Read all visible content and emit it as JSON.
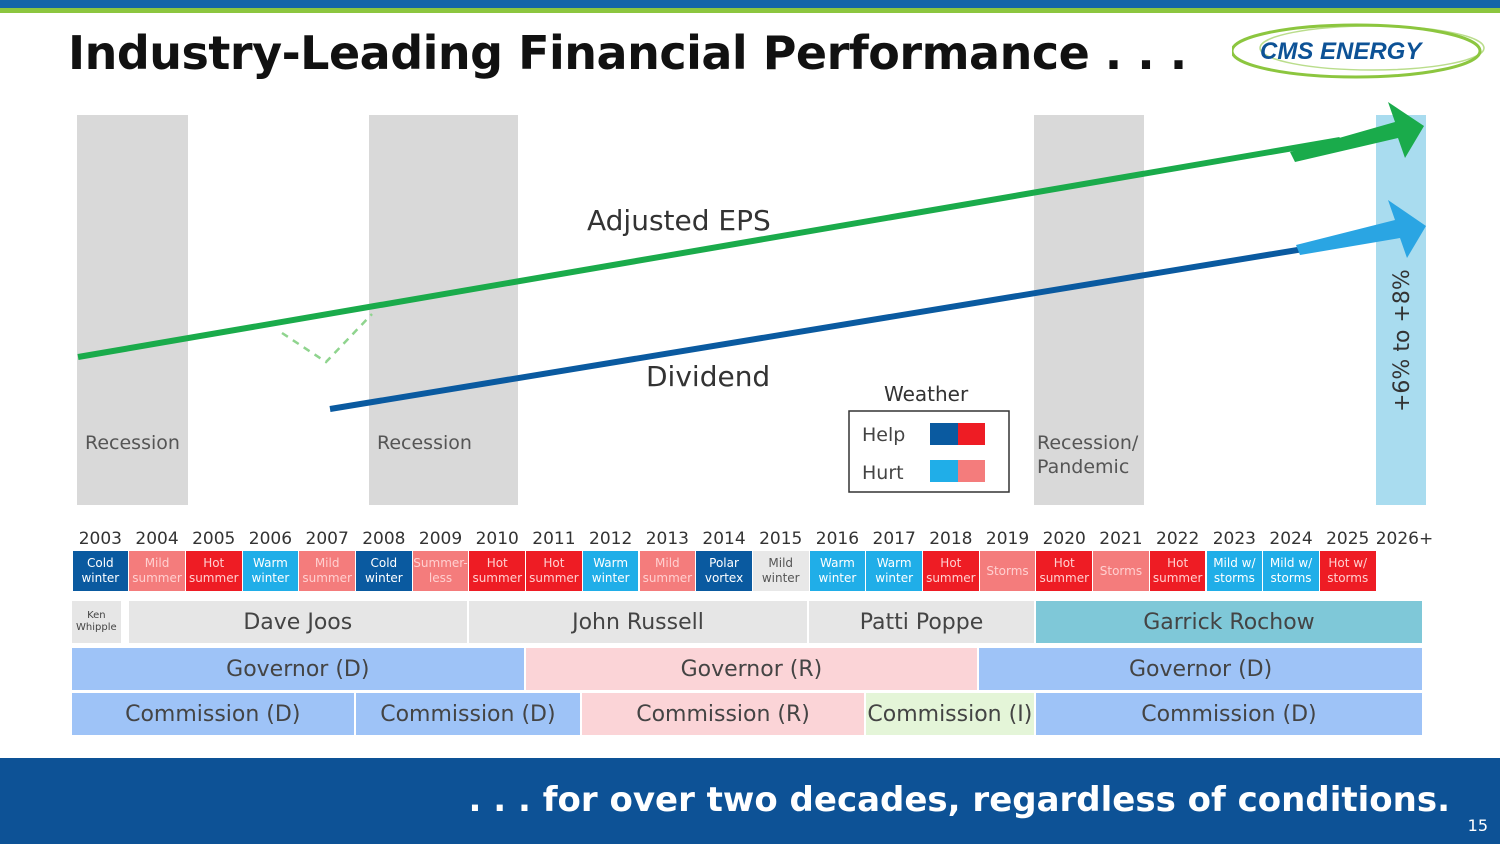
{
  "header": {
    "title": "Industry-Leading Financial Performance . . .",
    "logo_text": "CMS ENERGY"
  },
  "footer": {
    "tagline": ". . . for over two decades, regardless of conditions.",
    "page_number": "15"
  },
  "colors": {
    "eps_line": "#1aab4b",
    "dividend_line": "#0a5aa0",
    "arrow_light": "#2aa5e3",
    "help_blue": "#0a5aa0",
    "help_red": "#ee1c24",
    "hurt_blue": "#20aee8",
    "hurt_red": "#f47c7c",
    "democrat": "#9ec3f7",
    "republican": "#fbd4d7",
    "independent": "#e4f5d8",
    "rochow": "#7fc8d8",
    "neutral": "#e5e5e5"
  },
  "chart_data": {
    "type": "line",
    "x": [
      "2003",
      "2004",
      "2005",
      "2006",
      "2007",
      "2008",
      "2009",
      "2010",
      "2011",
      "2012",
      "2013",
      "2014",
      "2015",
      "2016",
      "2017",
      "2018",
      "2019",
      "2020",
      "2021",
      "2022",
      "2023",
      "2024",
      "2025",
      "2026+"
    ],
    "series": [
      {
        "name": "Adjusted EPS",
        "start": "2003",
        "end": "2026+"
      },
      {
        "name": "Dividend",
        "start": "2007",
        "end": "2026+"
      }
    ],
    "growth_label": "+6% to +8%",
    "shaded_periods": [
      {
        "label": "Recession",
        "from": "2003",
        "to": "2004"
      },
      {
        "label": "Recession",
        "from": "2008",
        "to": "2010"
      },
      {
        "label": "Recession/ Pandemic",
        "from": "2020",
        "to": "2021"
      }
    ],
    "legend": {
      "title": "Weather",
      "entries": [
        {
          "label": "Help"
        },
        {
          "label": "Hurt"
        }
      ]
    },
    "weather": [
      {
        "year": "2003",
        "text": "Cold winter",
        "effect": "help",
        "color": "#0a5aa0"
      },
      {
        "year": "2004",
        "text": "Mild summer",
        "effect": "hurt",
        "color": "#f47c7c"
      },
      {
        "year": "2005",
        "text": "Hot summer",
        "effect": "help",
        "color": "#ee1c24"
      },
      {
        "year": "2006",
        "text": "Warm winter",
        "effect": "hurt",
        "color": "#20aee8"
      },
      {
        "year": "2007",
        "text": "Mild summer",
        "effect": "hurt",
        "color": "#f47c7c"
      },
      {
        "year": "2008",
        "text": "Cold winter",
        "effect": "help",
        "color": "#0a5aa0"
      },
      {
        "year": "2009",
        "text": "Summer-less",
        "effect": "hurt",
        "color": "#f47c7c"
      },
      {
        "year": "2010",
        "text": "Hot summer",
        "effect": "help",
        "color": "#ee1c24"
      },
      {
        "year": "2011",
        "text": "Hot summer",
        "effect": "help",
        "color": "#ee1c24"
      },
      {
        "year": "2012",
        "text": "Warm winter",
        "effect": "hurt",
        "color": "#20aee8"
      },
      {
        "year": "2013",
        "text": "Mild summer",
        "effect": "hurt",
        "color": "#f47c7c"
      },
      {
        "year": "2014",
        "text": "Polar vortex",
        "effect": "help",
        "color": "#0a5aa0"
      },
      {
        "year": "2015",
        "text": "Mild winter",
        "effect": "neutral",
        "color": "#e8e8e8"
      },
      {
        "year": "2016",
        "text": "Warm winter",
        "effect": "hurt",
        "color": "#20aee8"
      },
      {
        "year": "2017",
        "text": "Warm winter",
        "effect": "hurt",
        "color": "#20aee8"
      },
      {
        "year": "2018",
        "text": "Hot summer",
        "effect": "help",
        "color": "#ee1c24"
      },
      {
        "year": "2019",
        "text": "Storms",
        "effect": "hurt",
        "color": "#f47c7c"
      },
      {
        "year": "2020",
        "text": "Hot summer",
        "effect": "help",
        "color": "#ee1c24"
      },
      {
        "year": "2021",
        "text": "Storms",
        "effect": "hurt",
        "color": "#f47c7c"
      },
      {
        "year": "2022",
        "text": "Hot summer",
        "effect": "help",
        "color": "#ee1c24"
      },
      {
        "year": "2023",
        "text": "Mild w/ storms",
        "effect": "hurt",
        "color": "#20aee8"
      },
      {
        "year": "2024",
        "text": "Mild w/ storms",
        "effect": "hurt",
        "color": "#20aee8"
      },
      {
        "year": "2025",
        "text": "Hot w/ storms",
        "effect": "help",
        "color": "#ee1c24"
      }
    ],
    "ceos": [
      {
        "name": "Ken Whipple",
        "from": "2003",
        "to": "2003"
      },
      {
        "name": "Dave Joos",
        "from": "2004",
        "to": "2009"
      },
      {
        "name": "John Russell",
        "from": "2010",
        "to": "2015"
      },
      {
        "name": "Patti Poppe",
        "from": "2016",
        "to": "2019"
      },
      {
        "name": "Garrick Rochow",
        "from": "2020",
        "to": "2026+"
      }
    ],
    "governors": [
      {
        "label": "Governor (D)",
        "from": "2003",
        "to": "2010",
        "party": "D"
      },
      {
        "label": "Governor (R)",
        "from": "2011",
        "to": "2018",
        "party": "R"
      },
      {
        "label": "Governor (D)",
        "from": "2019",
        "to": "2026+",
        "party": "D"
      }
    ],
    "commissions": [
      {
        "label": "Commission (D)",
        "from": "2003",
        "to": "2007",
        "party": "D"
      },
      {
        "label": "Commission (D)",
        "from": "2008",
        "to": "2011",
        "party": "D"
      },
      {
        "label": "Commission (R)",
        "from": "2012",
        "to": "2016",
        "party": "R"
      },
      {
        "label": "Commission (I)",
        "from": "2017",
        "to": "2019",
        "party": "I"
      },
      {
        "label": "Commission (D)",
        "from": "2020",
        "to": "2026+",
        "party": "D"
      }
    ]
  }
}
